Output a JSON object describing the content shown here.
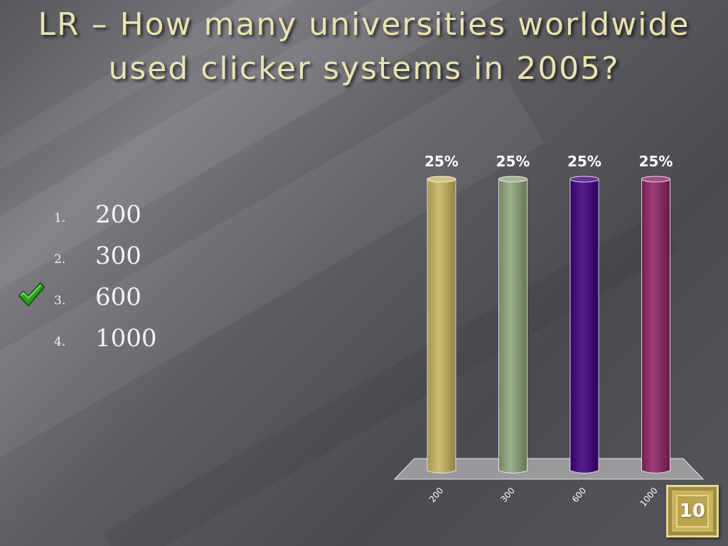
{
  "slide": {
    "title": "LR – How many universities worldwide used clicker systems in 2005?",
    "correct_answer_index": 2,
    "countdown": "10"
  },
  "answers": [
    {
      "number": "1.",
      "text": "200"
    },
    {
      "number": "2.",
      "text": "300"
    },
    {
      "number": "3.",
      "text": "600"
    },
    {
      "number": "4.",
      "text": "1000"
    }
  ],
  "chart_data": {
    "type": "bar",
    "categories": [
      "200",
      "300",
      "600",
      "1000"
    ],
    "values": [
      25,
      25,
      25,
      25
    ],
    "data_labels": [
      "25%",
      "25%",
      "25%",
      "25%"
    ],
    "colors": [
      "#c9b55e",
      "#8fa47a",
      "#3f007f",
      "#8e2463"
    ],
    "ylim": [
      0,
      25
    ],
    "title": "",
    "xlabel": "",
    "ylabel": "",
    "legend": "none",
    "grid": false
  }
}
